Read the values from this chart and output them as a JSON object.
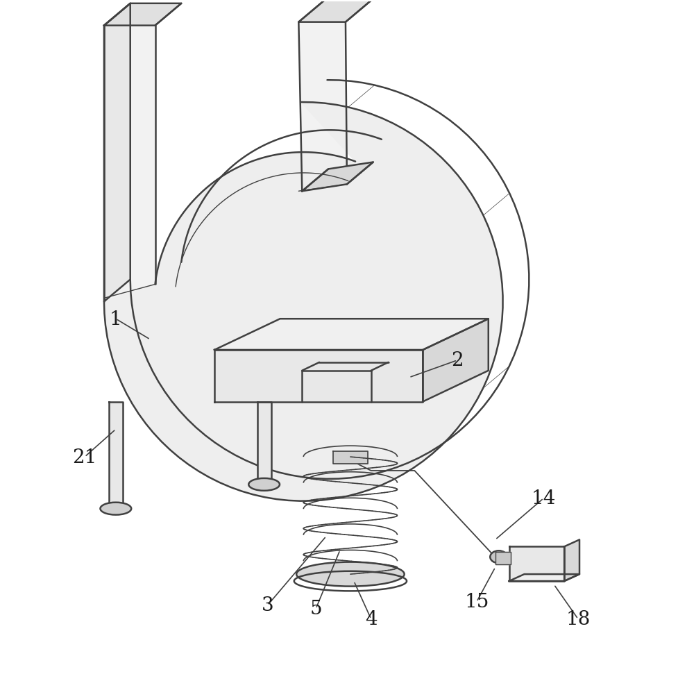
{
  "bg_color": "#ffffff",
  "line_color": "#404040",
  "line_width": 1.8,
  "fig_width": 9.78,
  "fig_height": 9.95
}
